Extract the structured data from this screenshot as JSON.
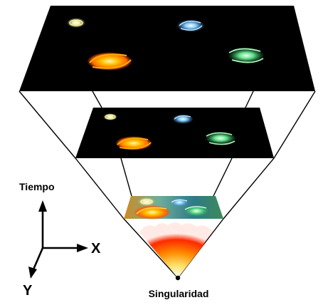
{
  "labels": {
    "time_axis": "Tiempo",
    "x_axis": "X",
    "y_axis": "Y",
    "origin": "Singularidad"
  },
  "colors": {
    "background": "#ffffff",
    "space": "#000000",
    "frame_lines": "#000000",
    "early_universe_glow": "#ff2a00",
    "galaxy_yellow": "#f2f0a0",
    "galaxy_blue": "#7fc8ff",
    "galaxy_orange": "#ff8a00",
    "galaxy_green": "#5fe08a"
  },
  "diagram": {
    "slices": [
      {
        "name": "present-universe",
        "galaxies": [
          "galaxy_yellow",
          "galaxy_blue",
          "galaxy_orange",
          "galaxy_green"
        ]
      },
      {
        "name": "middle-universe",
        "galaxies": [
          "galaxy_yellow",
          "galaxy_blue",
          "galaxy_orange",
          "galaxy_green"
        ]
      },
      {
        "name": "early-universe",
        "galaxies": [
          "galaxy_yellow",
          "galaxy_blue",
          "galaxy_orange",
          "galaxy_green"
        ]
      }
    ],
    "icons": [
      "time-axis-arrow-icon",
      "x-axis-arrow-icon",
      "y-axis-arrow-icon",
      "singularity-point-icon"
    ]
  }
}
